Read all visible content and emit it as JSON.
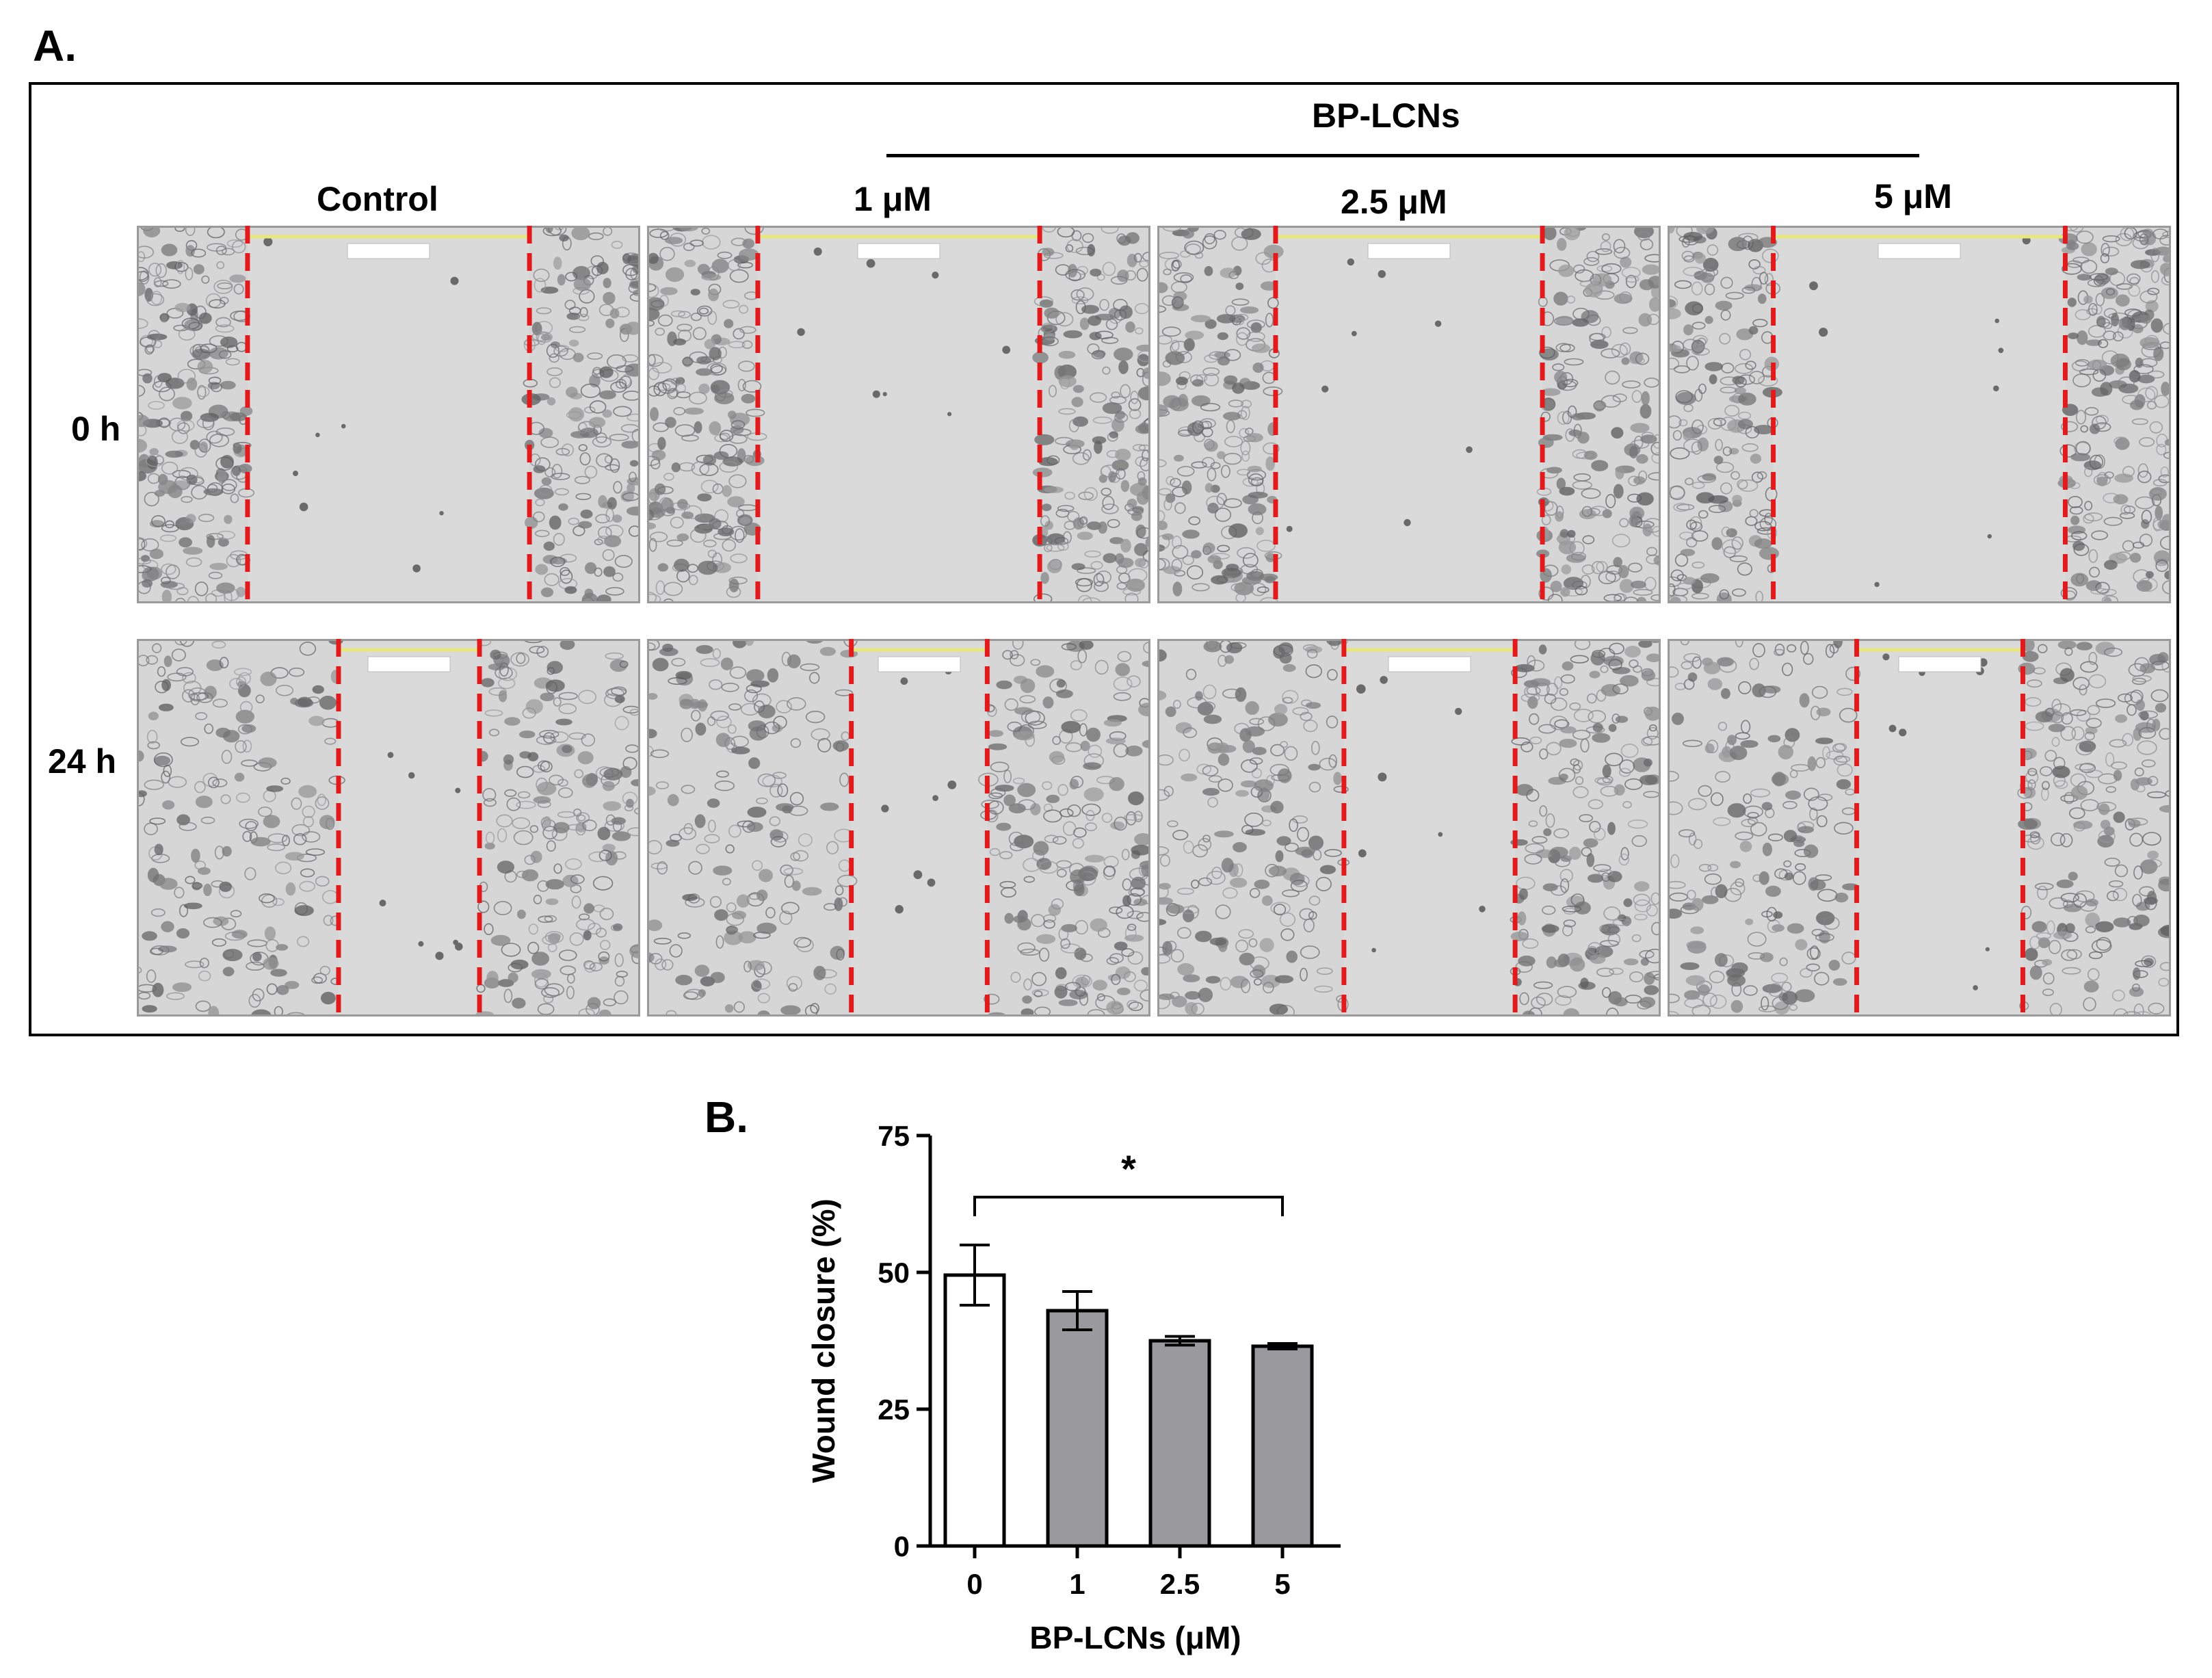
{
  "figure": {
    "panel_a_label": "A.",
    "panel_b_label": "B.",
    "group_label": "BP-LCNs",
    "columns": [
      "Control",
      "1 μM",
      "2.5 μM",
      "5 μM"
    ],
    "rows": [
      "0 h",
      "24 h"
    ],
    "colors": {
      "wound_edge": "#e31a1c",
      "scale_bar": "#e8e87a",
      "micrograph_bg": "#d6d6d6",
      "control_bar": "#ffffff",
      "treated_bar": "#9a9a9e"
    },
    "wound_gap_fraction": [
      [
        0.56,
        0.56,
        0.53,
        0.58
      ],
      [
        0.28,
        0.27,
        0.34,
        0.33
      ]
    ]
  },
  "chart_data": {
    "type": "bar",
    "categories": [
      "0",
      "1",
      "2.5",
      "5"
    ],
    "values": [
      49.5,
      43.0,
      37.5,
      36.5
    ],
    "errors": [
      5.5,
      3.5,
      0.8,
      0.5
    ],
    "xlabel": "BP-LCNs (μM)",
    "ylabel": "Wound closure (%)",
    "ylim": [
      0,
      75
    ],
    "yticks": [
      0,
      25,
      50,
      75
    ],
    "significance": {
      "from": "0",
      "to": "5",
      "label": "*"
    },
    "grid": false,
    "legend": "none"
  }
}
